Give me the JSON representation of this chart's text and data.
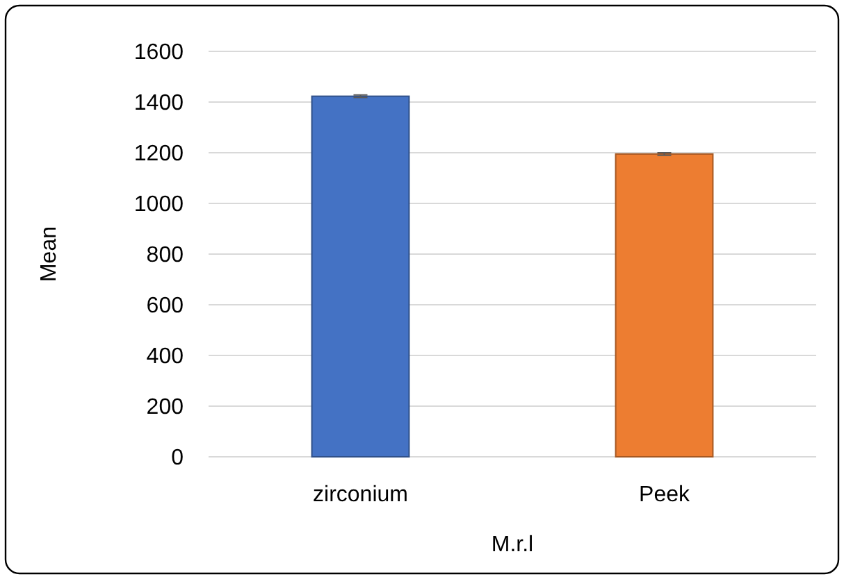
{
  "chart_data": {
    "type": "bar",
    "xlabel": "M.r.l",
    "ylabel": "Mean",
    "categories": [
      "zirconium",
      "Peek"
    ],
    "values": [
      1423,
      1195
    ],
    "colors": [
      "#4472c4",
      "#ed7d31"
    ],
    "errors": [
      5,
      5
    ],
    "ylim": [
      0,
      1600
    ],
    "yticks": [
      0,
      200,
      400,
      600,
      800,
      1000,
      1200,
      1400,
      1600
    ],
    "grid": "y"
  }
}
